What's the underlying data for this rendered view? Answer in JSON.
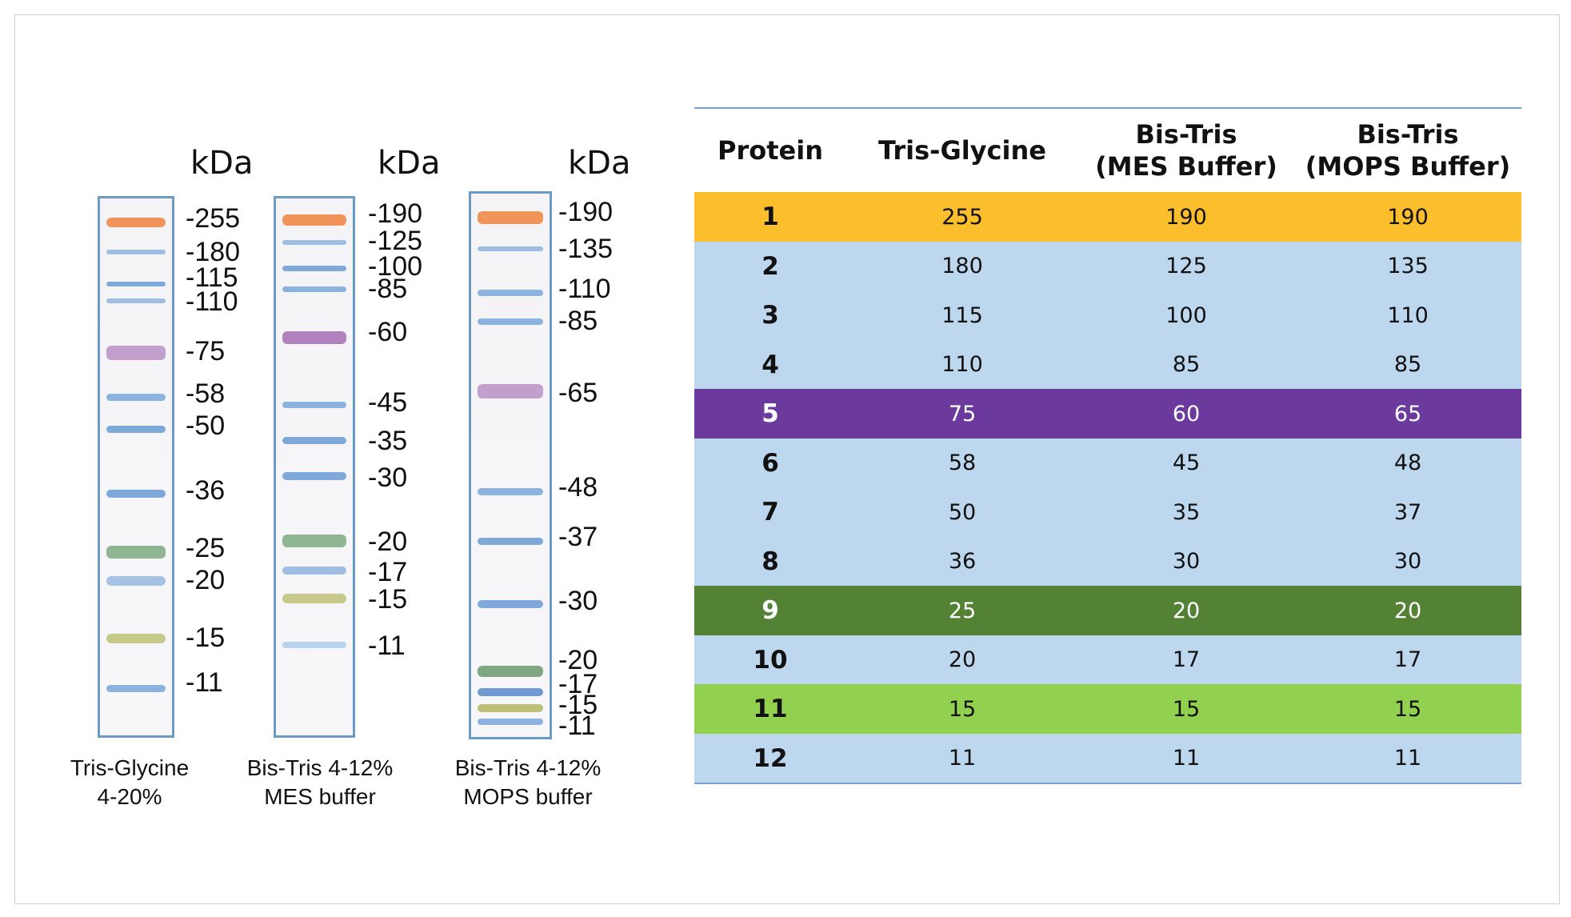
{
  "gels": [
    {
      "unit": "kDa",
      "caption_line1": "Tris-Glycine",
      "caption_line2": "4-20%",
      "markers": [
        "-255",
        "-180",
        "-115",
        "-110",
        "-75",
        "-58",
        "-50",
        "-36",
        "-25",
        "-20",
        "-15",
        "-11"
      ]
    },
    {
      "unit": "kDa",
      "caption_line1": "Bis-Tris 4-12%",
      "caption_line2": "MES buffer",
      "markers": [
        "-190",
        "-125",
        "-100",
        "-85",
        "-60",
        "-45",
        "-35",
        "-30",
        "-20",
        "-17",
        "-15",
        "-11"
      ]
    },
    {
      "unit": "kDa",
      "caption_line1": "Bis-Tris 4-12%",
      "caption_line2": "MOPS buffer",
      "markers": [
        "-190",
        "-135",
        "-110",
        "-85",
        "-65",
        "-48",
        "-37",
        "-30",
        "-20",
        "-17",
        "-15",
        "-11"
      ]
    }
  ],
  "band_colors": {
    "orange": "#f08a4b",
    "blue": "#7fa9d8",
    "purple": "#a36fb5",
    "green": "#7fa882",
    "yellow": "#bcc078"
  },
  "table": {
    "headers": [
      {
        "line1": "Protein",
        "line2": ""
      },
      {
        "line1": "Tris-Glycine",
        "line2": ""
      },
      {
        "line1": "Bis-Tris",
        "line2": "(MES Buffer)"
      },
      {
        "line1": "Bis-Tris",
        "line2": "(MOPS Buffer)"
      }
    ],
    "row_colors": {
      "default": "#bdd7ee",
      "orange": "#fbbf2e",
      "purple": "#6c3a9c",
      "dark_green": "#548235",
      "light_green": "#92d050"
    },
    "rows": [
      {
        "protein": "1",
        "tris_glycine": "255",
        "mes": "190",
        "mops": "190",
        "color": "orange"
      },
      {
        "protein": "2",
        "tris_glycine": "180",
        "mes": "125",
        "mops": "135",
        "color": "default"
      },
      {
        "protein": "3",
        "tris_glycine": "115",
        "mes": "100",
        "mops": "110",
        "color": "default"
      },
      {
        "protein": "4",
        "tris_glycine": "110",
        "mes": "85",
        "mops": "85",
        "color": "default"
      },
      {
        "protein": "5",
        "tris_glycine": "75",
        "mes": "60",
        "mops": "65",
        "color": "purple"
      },
      {
        "protein": "6",
        "tris_glycine": "58",
        "mes": "45",
        "mops": "48",
        "color": "default"
      },
      {
        "protein": "7",
        "tris_glycine": "50",
        "mes": "35",
        "mops": "37",
        "color": "default"
      },
      {
        "protein": "8",
        "tris_glycine": "36",
        "mes": "30",
        "mops": "30",
        "color": "default"
      },
      {
        "protein": "9",
        "tris_glycine": "25",
        "mes": "20",
        "mops": "20",
        "color": "dark_green"
      },
      {
        "protein": "10",
        "tris_glycine": "20",
        "mes": "17",
        "mops": "17",
        "color": "default"
      },
      {
        "protein": "11",
        "tris_glycine": "15",
        "mes": "15",
        "mops": "15",
        "color": "light_green"
      },
      {
        "protein": "12",
        "tris_glycine": "11",
        "mes": "11",
        "mops": "11",
        "color": "default"
      }
    ]
  }
}
